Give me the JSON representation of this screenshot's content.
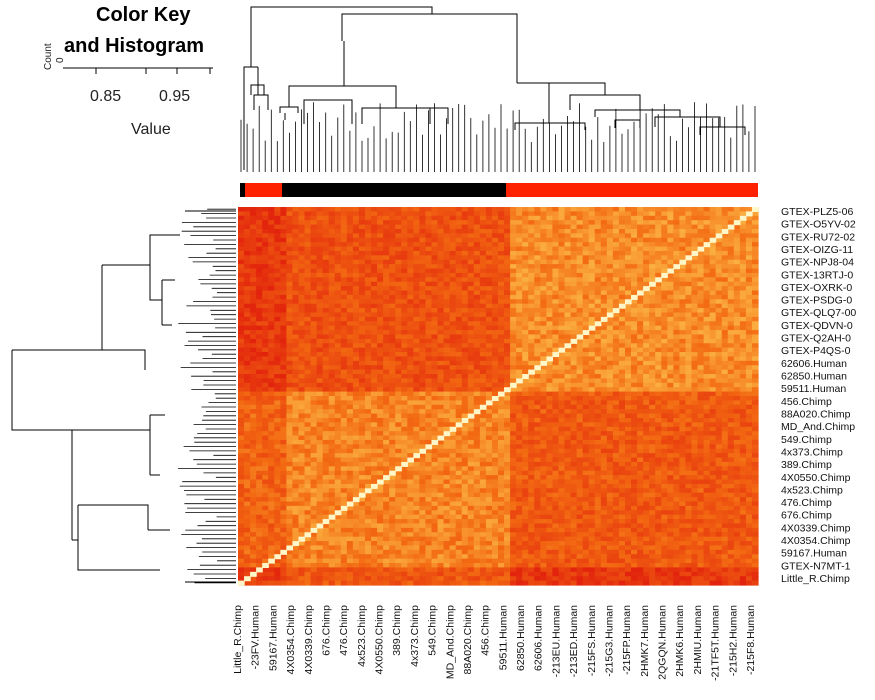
{
  "chart_data": {
    "type": "heatmap",
    "color_key": {
      "title_line1": "Color Key",
      "title_line2": "and Histogram",
      "y_axis_label": "Count",
      "y_tick": "0",
      "x_ticks": [
        "0.85",
        "0.95"
      ],
      "x_label": "Value"
    },
    "row_labels": [
      "GTEX-PLZ5-06",
      "GTEX-O5YV-02",
      "GTEX-RU72-02",
      "GTEX-OIZG-11",
      "GTEX-NPJ8-04",
      "GTEX-13RTJ-0",
      "GTEX-OXRK-0",
      "GTEX-PSDG-0",
      "GTEX-QLQ7-00",
      "GTEX-QDVN-0",
      "GTEX-Q2AH-0",
      "GTEX-P4QS-0",
      "62606.Human",
      "62850.Human",
      "59511.Human",
      "456.Chimp",
      "88A020.Chimp",
      "MD_And.Chimp",
      "549.Chimp",
      "4x373.Chimp",
      "389.Chimp",
      "4X0550.Chimp",
      "4x523.Chimp",
      "476.Chimp",
      "676.Chimp",
      "4X0339.Chimp",
      "4X0354.Chimp",
      "59167.Human",
      "GTEX-N7MT-1",
      "Little_R.Chimp"
    ],
    "col_labels": [
      "Little_R.Chimp",
      "-23FV.Human",
      "59167.Human",
      "4X0354.Chimp",
      "4X0339.Chimp",
      "676.Chimp",
      "476.Chimp",
      "4x523.Chimp",
      "4X0550.Chimp",
      "389.Chimp",
      "4x373.Chimp",
      "549.Chimp",
      "MD_And.Chimp",
      "88A020.Chimp",
      "456.Chimp",
      "59511.Human",
      "62850.Human",
      "62606.Human",
      "-213EU.Human",
      "-213ED.Human",
      "-215FS.Human",
      "-215G3.Human",
      "-215FP.Human",
      "2HMK7.Human",
      "2QGQN.Human",
      "2HMK6.Human",
      "2HMIU.Human",
      "-21TF5T.Human",
      "-215H2.Human",
      "-215F8.Human"
    ],
    "column_side_colors": [
      "#000000",
      "#ff2200"
    ],
    "colors": {
      "low": "#e2230d",
      "mid": "#f36a12",
      "high": "#ffd65a",
      "diagonal": "#fff7c8"
    },
    "grid": false
  }
}
